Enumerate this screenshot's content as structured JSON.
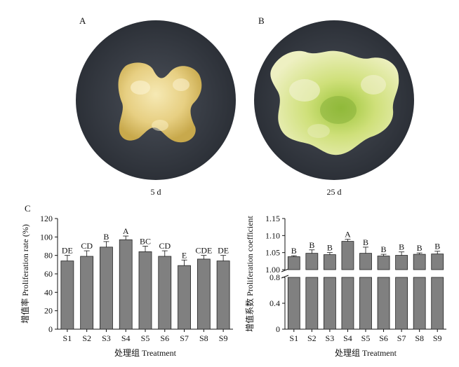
{
  "panels": {
    "a_label": "A",
    "b_label": "B",
    "c_label": "C",
    "a_caption": "5 d",
    "b_caption": "25 d"
  },
  "chart_data": [
    {
      "type": "bar",
      "categories": [
        "S1",
        "S2",
        "S3",
        "S4",
        "S5",
        "S6",
        "S7",
        "S8",
        "S9"
      ],
      "values": [
        74,
        79,
        89,
        97,
        84,
        79,
        69,
        76,
        74
      ],
      "errors": [
        6,
        6,
        6,
        4,
        6,
        6,
        6,
        4,
        6
      ],
      "letters": [
        "DE",
        "CD",
        "B",
        "A",
        "BC",
        "CD",
        "E",
        "CDE",
        "DE"
      ],
      "xlabel": "处理组 Treatment",
      "ylabel": "增值率 Proliferation rate (%)",
      "ylim": [
        0,
        120
      ],
      "yticks": [
        0,
        20,
        40,
        60,
        80,
        100,
        120
      ],
      "bar_color": "#808080"
    },
    {
      "type": "bar",
      "categories": [
        "S1",
        "S2",
        "S3",
        "S4",
        "S5",
        "S6",
        "S7",
        "S8",
        "S9"
      ],
      "values": [
        1.038,
        1.048,
        1.044,
        1.083,
        1.048,
        1.04,
        1.042,
        1.045,
        1.046
      ],
      "errors": [
        0.003,
        0.01,
        0.006,
        0.006,
        0.018,
        0.005,
        0.01,
        0.004,
        0.008
      ],
      "letters": [
        "B",
        "B",
        "B",
        "A",
        "B",
        "B",
        "B",
        "B",
        "B"
      ],
      "xlabel": "处理组 Treatment",
      "ylabel": "增值系数 Proliferation coefficient",
      "axis_break": true,
      "lower_ticks": [
        "0",
        "0.4",
        "0.8"
      ],
      "upper_ticks": [
        "1.00",
        "1.05",
        "1.10",
        "1.15"
      ],
      "lower_range": [
        0,
        0.8
      ],
      "upper_range": [
        1.0,
        1.15
      ],
      "bar_color": "#808080"
    }
  ]
}
